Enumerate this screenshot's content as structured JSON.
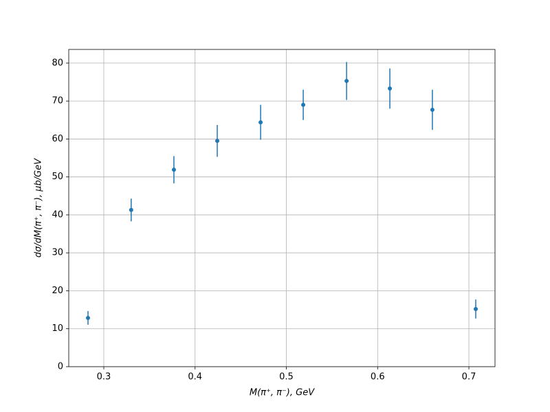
{
  "chart_data": {
    "type": "errorbar",
    "xlabel": "M(π⁺, π⁻), GeV",
    "ylabel": "dσ/dM(π⁺, π⁻), μb/GeV",
    "x": [
      0.2827,
      0.33,
      0.3768,
      0.4243,
      0.4718,
      0.5185,
      0.566,
      0.6134,
      0.66,
      0.7075
    ],
    "values": [
      12.85,
      41.3,
      51.9,
      59.5,
      64.4,
      69.0,
      75.3,
      73.3,
      67.7,
      15.2
    ],
    "errors": [
      1.8,
      3.0,
      3.6,
      4.2,
      4.6,
      4.0,
      5.0,
      5.3,
      5.3,
      2.5
    ],
    "color": "#1f77b4",
    "xlim": [
      0.2616,
      0.7286
    ],
    "ylim": [
      0,
      83.6
    ],
    "xticks": [
      0.3,
      0.4,
      0.5,
      0.6,
      0.7
    ],
    "yticks": [
      0,
      10,
      20,
      30,
      40,
      50,
      60,
      70,
      80
    ],
    "grid": true
  }
}
